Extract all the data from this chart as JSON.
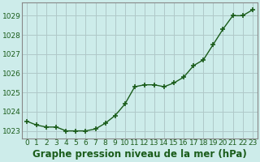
{
  "x": [
    0,
    1,
    2,
    3,
    4,
    5,
    6,
    7,
    8,
    9,
    10,
    11,
    12,
    13,
    14,
    15,
    16,
    17,
    18,
    19,
    20,
    21,
    22,
    23
  ],
  "y": [
    1023.5,
    1023.3,
    1023.2,
    1023.2,
    1023.0,
    1023.0,
    1023.0,
    1023.1,
    1023.4,
    1023.8,
    1024.4,
    1025.3,
    1025.4,
    1025.4,
    1025.3,
    1025.5,
    1025.8,
    1026.4,
    1026.7,
    1027.5,
    1028.3,
    1029.0,
    1029.0,
    1029.3
  ],
  "line_color": "#1a5c1a",
  "marker_color": "#1a5c1a",
  "bg_color": "#cdecea",
  "plot_bg_color": "#cdecea",
  "grid_color": "#b0c8c8",
  "ylabel_ticks": [
    1023,
    1024,
    1025,
    1026,
    1027,
    1028,
    1029
  ],
  "xlabel": "Graphe pression niveau de la mer (hPa)",
  "ylim": [
    1022.6,
    1029.7
  ],
  "xlim": [
    -0.5,
    23.5
  ],
  "label_color": "#1a5c1a",
  "xlabel_fontsize": 8.5,
  "tick_fontsize": 6.5,
  "line_width": 1.0,
  "marker_size": 4.5,
  "spine_color": "#888888"
}
